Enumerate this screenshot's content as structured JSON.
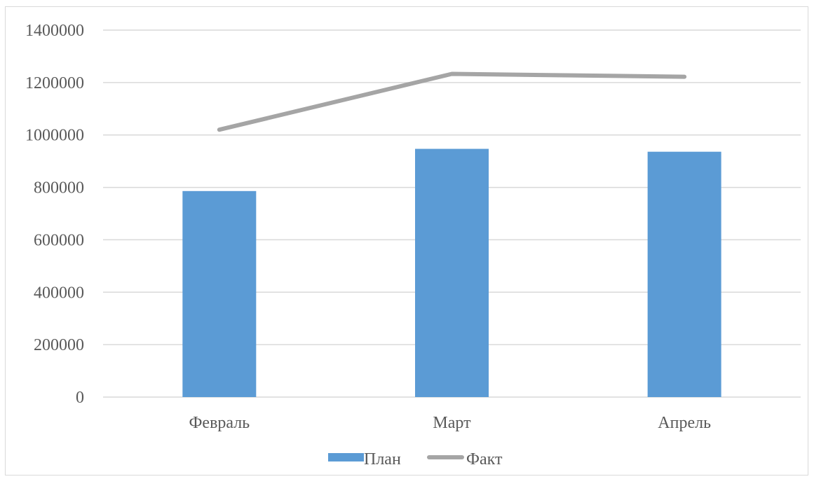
{
  "chart_data": {
    "type": "bar",
    "categories": [
      "Февраль",
      "Март",
      "Апрель"
    ],
    "series": [
      {
        "name": "План",
        "kind": "bar",
        "color": "#5b9bd5",
        "values": [
          786000,
          947000,
          936000
        ]
      },
      {
        "name": "Факт",
        "kind": "line",
        "color": "#a5a5a5",
        "values": [
          1020000,
          1233000,
          1222000
        ]
      }
    ],
    "y_ticks": [
      "0",
      "200000",
      "400000",
      "600000",
      "800000",
      "1000000",
      "1200000",
      "1400000"
    ],
    "ylim": [
      0,
      1400000
    ],
    "grid": true,
    "legend_position": "bottom",
    "gridline_color": "#d9d9d9"
  }
}
